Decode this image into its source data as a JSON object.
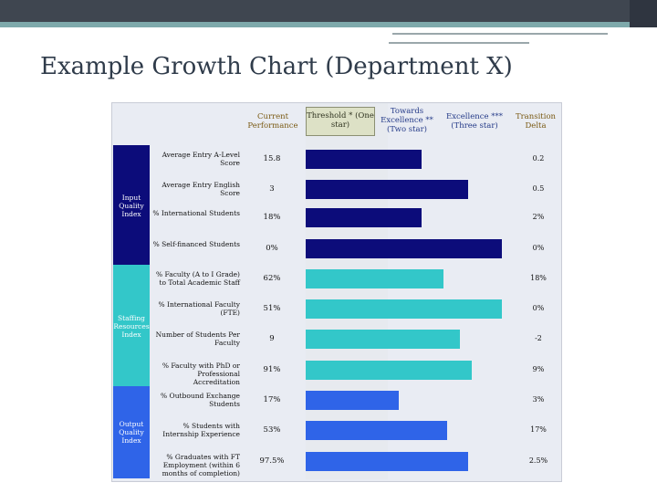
{
  "title": "Example Growth Chart (Department X)",
  "colors": {
    "input": "#0c0c7a",
    "staffing": "#33c7c9",
    "output": "#2f64e8"
  },
  "chart_data": {
    "type": "bar",
    "orientation": "horizontal",
    "xlim": [
      0,
      100
    ],
    "headers": {
      "current": "Current Performance",
      "threshold": "Threshold * (One star)",
      "towards": "Towards Excellence ** (Two star)",
      "excellence": "Excellence *** (Three star)",
      "delta": "Transition Delta"
    },
    "groups": [
      {
        "name": "Input Quality Index",
        "color": "#0c0c7a",
        "rows": [
          0,
          1,
          2,
          3
        ]
      },
      {
        "name": "Staffing Resources Index",
        "color": "#33c7c9",
        "rows": [
          4,
          5,
          6,
          7
        ]
      },
      {
        "name": "Output Quality Index",
        "color": "#2f64e8",
        "rows": [
          8,
          9,
          10
        ]
      }
    ],
    "rows": [
      {
        "metric": "Average Entry A-Level Score",
        "current": "15.8",
        "delta": "0.2",
        "value": 57
      },
      {
        "metric": "Average Entry English Score",
        "current": "3",
        "delta": "0.5",
        "value": 80
      },
      {
        "metric": "% International Students",
        "current": "18%",
        "delta": "2%",
        "value": 57
      },
      {
        "metric": "% Self-financed Students",
        "current": "0%",
        "delta": "0%",
        "value": 97
      },
      {
        "metric": "% Faculty (A to I Grade) to Total Academic Staff",
        "current": "62%",
        "delta": "18%",
        "value": 68
      },
      {
        "metric": "% International Faculty (FTE)",
        "current": "51%",
        "delta": "0%",
        "value": 97
      },
      {
        "metric": "Number of Students Per Faculty",
        "current": "9",
        "delta": "-2",
        "value": 76
      },
      {
        "metric": "% Faculty with PhD or Professional Accreditation",
        "current": "91%",
        "delta": "9%",
        "value": 82
      },
      {
        "metric": "% Outbound Exchange Students",
        "current": "17%",
        "delta": "3%",
        "value": 46
      },
      {
        "metric": "% Students with Internship Experience",
        "current": "53%",
        "delta": "17%",
        "value": 70
      },
      {
        "metric": "% Graduates with FT Employment (within 6 months of completion)",
        "current": "97.5%",
        "delta": "2.5%",
        "value": 80
      }
    ]
  }
}
